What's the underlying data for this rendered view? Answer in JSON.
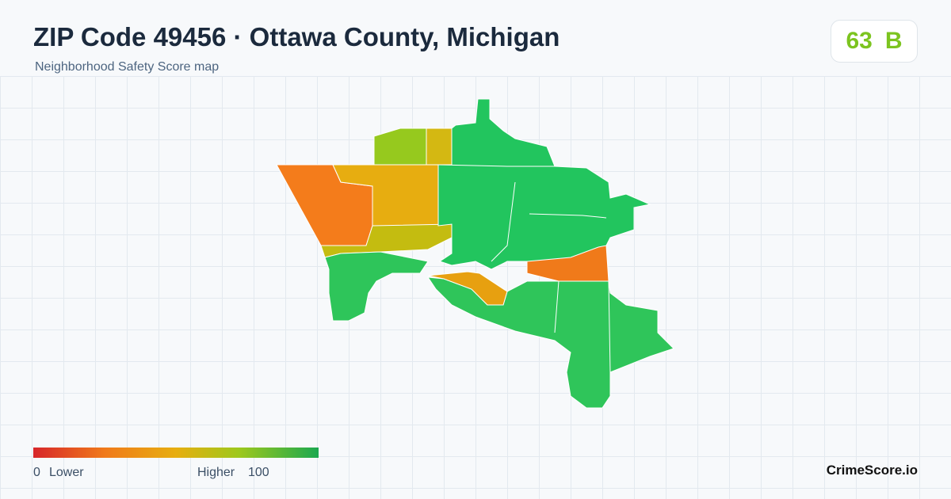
{
  "header": {
    "title": "ZIP Code 49456 · Ottawa County, Michigan",
    "subtitle": "Neighborhood Safety Score map"
  },
  "score": {
    "value": "63",
    "grade": "B"
  },
  "legend": {
    "min": "0",
    "min_label": "Lower",
    "max_label": "Higher",
    "max": "100"
  },
  "brand": "CrimeScore.io"
}
